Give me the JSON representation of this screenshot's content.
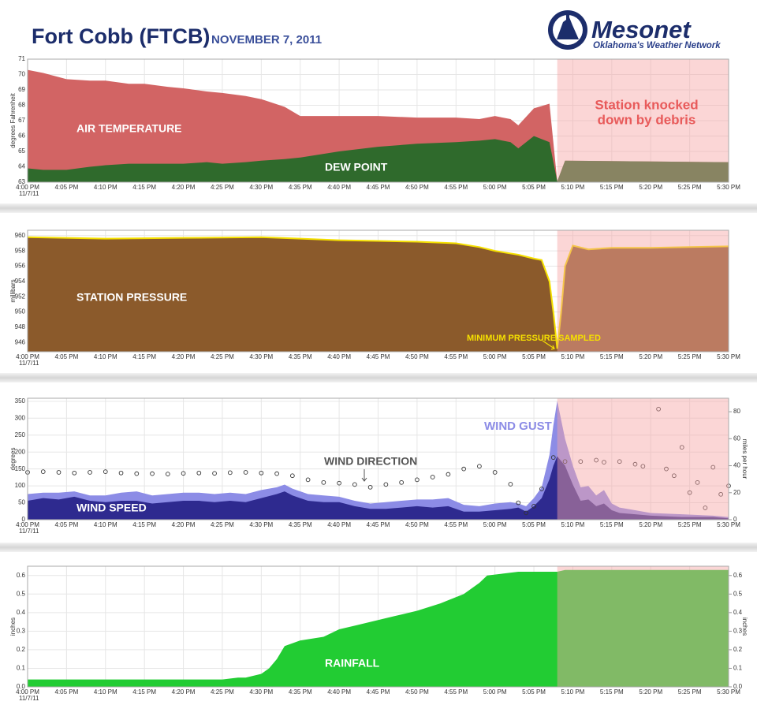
{
  "header": {
    "title": "Fort Cobb (FTCB)",
    "date": "NOVEMBER 7, 2011",
    "logo": "Mesonet",
    "logo_subtitle": "Oklahoma's Weather Network"
  },
  "chart_data": [
    {
      "type": "area",
      "ylabel": "degrees Fahrenheit",
      "x_date": "11/7/11",
      "xlim": [
        0,
        90
      ],
      "xticks": [
        {
          "value": 0,
          "label": "4:00 PM"
        },
        {
          "value": 5,
          "label": "4:05 PM"
        },
        {
          "value": 10,
          "label": "4:10 PM"
        },
        {
          "value": 15,
          "label": "4:15 PM"
        },
        {
          "value": 20,
          "label": "4:20 PM"
        },
        {
          "value": 25,
          "label": "4:25 PM"
        },
        {
          "value": 30,
          "label": "4:30 PM"
        },
        {
          "value": 35,
          "label": "4:35 PM"
        },
        {
          "value": 40,
          "label": "4:40 PM"
        },
        {
          "value": 45,
          "label": "4:45 PM"
        },
        {
          "value": 50,
          "label": "4:50 PM"
        },
        {
          "value": 55,
          "label": "4:55 PM"
        },
        {
          "value": 60,
          "label": "5:00 PM"
        },
        {
          "value": 65,
          "label": "5:05 PM"
        },
        {
          "value": 70,
          "label": "5:10 PM"
        },
        {
          "value": 75,
          "label": "5:15 PM"
        },
        {
          "value": 80,
          "label": "5:20 PM"
        },
        {
          "value": 85,
          "label": "5:25 PM"
        },
        {
          "value": 90,
          "label": "5:30 PM"
        }
      ],
      "ylim": [
        63,
        71
      ],
      "yticks": [
        63,
        64,
        65,
        66,
        67,
        68,
        69,
        70,
        71
      ],
      "grid": true,
      "shade": {
        "x": [
          68,
          90
        ],
        "color": "#f7a3a3"
      },
      "annotations": [
        "Station knocked",
        "down by debris"
      ],
      "series": [
        {
          "name": "AIR TEMPERATURE",
          "type": "area",
          "color": "#d26464",
          "x": [
            0,
            2,
            5,
            8,
            10,
            13,
            15,
            18,
            20,
            23,
            25,
            28,
            30,
            33,
            35,
            40,
            45,
            50,
            55,
            58,
            60,
            62,
            63,
            65,
            67,
            68,
            69,
            90
          ],
          "values": [
            70.3,
            70.1,
            69.7,
            69.6,
            69.6,
            69.4,
            69.4,
            69.2,
            69.1,
            68.9,
            68.8,
            68.6,
            68.4,
            67.9,
            67.3,
            67.3,
            67.3,
            67.2,
            67.2,
            67.1,
            67.3,
            67.1,
            66.7,
            67.8,
            68.1,
            63.05,
            64.4,
            64.3
          ]
        },
        {
          "name": "DEW POINT",
          "type": "area",
          "color": "#2f6a2c",
          "x": [
            0,
            2,
            5,
            8,
            10,
            13,
            15,
            18,
            20,
            23,
            25,
            28,
            30,
            33,
            35,
            40,
            45,
            50,
            55,
            58,
            60,
            62,
            63,
            65,
            67,
            68,
            69,
            90
          ],
          "values": [
            63.9,
            63.8,
            63.8,
            64.0,
            64.1,
            64.2,
            64.2,
            64.2,
            64.2,
            64.3,
            64.2,
            64.3,
            64.4,
            64.5,
            64.6,
            65.0,
            65.3,
            65.5,
            65.6,
            65.7,
            65.8,
            65.6,
            65.2,
            66.0,
            65.6,
            63.05,
            64.4,
            64.3
          ]
        }
      ]
    },
    {
      "type": "area",
      "ylabel": "millibars",
      "x_date": "11/7/11",
      "xlim": [
        0,
        90
      ],
      "xticks": [
        {
          "value": 0,
          "label": "4:00 PM"
        },
        {
          "value": 5,
          "label": "4:05 PM"
        },
        {
          "value": 10,
          "label": "4:10 PM"
        },
        {
          "value": 15,
          "label": "4:15 PM"
        },
        {
          "value": 20,
          "label": "4:20 PM"
        },
        {
          "value": 25,
          "label": "4:25 PM"
        },
        {
          "value": 30,
          "label": "4:30 PM"
        },
        {
          "value": 35,
          "label": "4:35 PM"
        },
        {
          "value": 40,
          "label": "4:40 PM"
        },
        {
          "value": 45,
          "label": "4:45 PM"
        },
        {
          "value": 50,
          "label": "4:50 PM"
        },
        {
          "value": 55,
          "label": "4:55 PM"
        },
        {
          "value": 60,
          "label": "5:00 PM"
        },
        {
          "value": 65,
          "label": "5:05 PM"
        },
        {
          "value": 70,
          "label": "5:10 PM"
        },
        {
          "value": 75,
          "label": "5:15 PM"
        },
        {
          "value": 80,
          "label": "5:20 PM"
        },
        {
          "value": 85,
          "label": "5:25 PM"
        },
        {
          "value": 90,
          "label": "5:30 PM"
        }
      ],
      "ylim": [
        944.8,
        960.7
      ],
      "yticks": [
        946,
        948,
        950,
        952,
        954,
        956,
        958,
        960
      ],
      "grid": true,
      "shade": {
        "x": [
          68,
          90
        ],
        "color": "#f7a3a3"
      },
      "annotations": [
        "MINIMUM PRESSURE SAMPLED"
      ],
      "series": [
        {
          "name": "STATION PRESSURE",
          "type": "area",
          "color": "#8b5a2b",
          "line_color": "#f5e000",
          "x": [
            0,
            10,
            20,
            30,
            35,
            40,
            45,
            50,
            55,
            58,
            60,
            63,
            65,
            66,
            67,
            67.5,
            68,
            68.5,
            69,
            70,
            72,
            75,
            80,
            85,
            90
          ],
          "values": [
            959.8,
            959.6,
            959.7,
            959.8,
            959.6,
            959.4,
            959.3,
            959.2,
            959.0,
            958.5,
            958.0,
            957.5,
            957.0,
            956.8,
            954.0,
            950.0,
            945.2,
            950.0,
            956.0,
            958.7,
            958.2,
            958.4,
            958.4,
            958.5,
            958.6
          ]
        }
      ]
    },
    {
      "type": "area",
      "ylabel": "degrees",
      "y2label": "miles per hour",
      "x_date": "11/7/11",
      "xlim": [
        0,
        90
      ],
      "xticks": [
        {
          "value": 0,
          "label": "4:00 PM"
        },
        {
          "value": 5,
          "label": "4:05 PM"
        },
        {
          "value": 10,
          "label": "4:10 PM"
        },
        {
          "value": 15,
          "label": "4:15 PM"
        },
        {
          "value": 20,
          "label": "4:20 PM"
        },
        {
          "value": 25,
          "label": "4:25 PM"
        },
        {
          "value": 30,
          "label": "4:30 PM"
        },
        {
          "value": 35,
          "label": "4:35 PM"
        },
        {
          "value": 40,
          "label": "4:40 PM"
        },
        {
          "value": 45,
          "label": "4:45 PM"
        },
        {
          "value": 50,
          "label": "4:50 PM"
        },
        {
          "value": 55,
          "label": "4:55 PM"
        },
        {
          "value": 60,
          "label": "5:00 PM"
        },
        {
          "value": 65,
          "label": "5:05 PM"
        },
        {
          "value": 70,
          "label": "5:10 PM"
        },
        {
          "value": 75,
          "label": "5:15 PM"
        },
        {
          "value": 80,
          "label": "5:20 PM"
        },
        {
          "value": 85,
          "label": "5:25 PM"
        },
        {
          "value": 90,
          "label": "5:30 PM"
        }
      ],
      "ylim": [
        0,
        359
      ],
      "yticks": [
        0,
        50,
        100,
        150,
        200,
        250,
        300,
        350
      ],
      "y2lim": [
        0,
        90
      ],
      "y2ticks": [
        0,
        20,
        40,
        60,
        80
      ],
      "grid": true,
      "shade": {
        "x": [
          68,
          90
        ],
        "color": "#f7a3a3"
      },
      "series": [
        {
          "name": "WIND GUST",
          "type": "area",
          "axis": "y2",
          "color": "#8c8ce6",
          "x": [
            0,
            2,
            4,
            6,
            8,
            10,
            12,
            14,
            16,
            18,
            20,
            22,
            24,
            26,
            28,
            30,
            32,
            33,
            34,
            36,
            38,
            40,
            42,
            44,
            46,
            48,
            50,
            52,
            54,
            56,
            58,
            60,
            62,
            63,
            64,
            65,
            66,
            67,
            67.5,
            68,
            69,
            70,
            71,
            72,
            73,
            74,
            75,
            76,
            78,
            80,
            84,
            88,
            90
          ],
          "values": [
            19,
            20,
            20,
            21,
            18,
            18,
            20,
            21,
            18,
            19,
            20,
            20,
            19,
            20,
            19,
            22,
            24,
            26,
            23,
            19,
            18,
            17,
            14,
            12,
            13,
            14,
            15,
            15,
            16,
            11,
            10,
            12,
            13,
            12,
            10,
            16,
            24,
            48,
            70,
            88,
            60,
            40,
            24,
            25,
            18,
            22,
            12,
            9,
            7,
            5,
            4,
            3,
            2
          ]
        },
        {
          "name": "WIND SPEED",
          "type": "area",
          "axis": "y2",
          "color": "#2e2a8f",
          "x": [
            0,
            2,
            4,
            6,
            8,
            10,
            12,
            14,
            16,
            18,
            20,
            22,
            24,
            26,
            28,
            30,
            32,
            33,
            34,
            36,
            38,
            40,
            42,
            44,
            46,
            48,
            50,
            52,
            54,
            56,
            58,
            60,
            62,
            63,
            64,
            65,
            66,
            67,
            67.5,
            68,
            69,
            70,
            71,
            72,
            73,
            74,
            75,
            76,
            78,
            80,
            84,
            88,
            90
          ],
          "values": [
            14,
            16,
            15,
            17,
            14,
            13,
            14,
            14,
            12,
            13,
            14,
            14,
            13,
            14,
            13,
            16,
            19,
            21,
            18,
            14,
            13,
            13,
            10,
            8,
            8,
            9,
            10,
            9,
            10,
            6,
            6,
            7,
            8,
            9,
            6,
            10,
            16,
            30,
            40,
            47,
            40,
            26,
            14,
            15,
            10,
            12,
            7,
            5,
            4,
            3,
            2,
            2,
            1
          ]
        },
        {
          "name": "WIND DIRECTION",
          "type": "scatter",
          "color": "#333333",
          "x": [
            0,
            2,
            4,
            6,
            8,
            10,
            12,
            14,
            16,
            18,
            20,
            22,
            24,
            26,
            28,
            30,
            32,
            34,
            36,
            38,
            40,
            42,
            44,
            46,
            48,
            50,
            52,
            54,
            56,
            58,
            60,
            62,
            63,
            64,
            65,
            66,
            67.5,
            69,
            71,
            73,
            74,
            76,
            78,
            79,
            81,
            82,
            83,
            84,
            85,
            86,
            87,
            88,
            89,
            90
          ],
          "values": [
            140,
            142,
            140,
            138,
            140,
            142,
            138,
            136,
            136,
            135,
            137,
            138,
            137,
            139,
            140,
            138,
            136,
            130,
            118,
            110,
            108,
            104,
            96,
            104,
            110,
            118,
            126,
            134,
            150,
            158,
            140,
            105,
            50,
            20,
            40,
            91,
            184,
            172,
            172,
            176,
            170,
            172,
            164,
            158,
            327,
            150,
            130,
            214,
            80,
            110,
            35,
            155,
            75,
            100
          ]
        }
      ]
    },
    {
      "type": "area",
      "ylabel": "inches",
      "y2label": "inches",
      "x_date": "11/7/11",
      "xlim": [
        0,
        90
      ],
      "xticks": [
        {
          "value": 0,
          "label": "4:00 PM"
        },
        {
          "value": 5,
          "label": "4:05 PM"
        },
        {
          "value": 10,
          "label": "4:10 PM"
        },
        {
          "value": 15,
          "label": "4:15 PM"
        },
        {
          "value": 20,
          "label": "4:20 PM"
        },
        {
          "value": 25,
          "label": "4:25 PM"
        },
        {
          "value": 30,
          "label": "4:30 PM"
        },
        {
          "value": 35,
          "label": "4:35 PM"
        },
        {
          "value": 40,
          "label": "4:40 PM"
        },
        {
          "value": 45,
          "label": "4:45 PM"
        },
        {
          "value": 50,
          "label": "4:50 PM"
        },
        {
          "value": 55,
          "label": "4:55 PM"
        },
        {
          "value": 60,
          "label": "5:00 PM"
        },
        {
          "value": 65,
          "label": "5:05 PM"
        },
        {
          "value": 70,
          "label": "5:10 PM"
        },
        {
          "value": 75,
          "label": "5:15 PM"
        },
        {
          "value": 80,
          "label": "5:20 PM"
        },
        {
          "value": 85,
          "label": "5:25 PM"
        },
        {
          "value": 90,
          "label": "5:30 PM"
        }
      ],
      "ylim": [
        0,
        0.65
      ],
      "yticks": [
        {
          "value": 0,
          "label": "0.0"
        },
        0.1,
        0.2,
        0.3,
        0.4,
        0.5,
        0.6
      ],
      "y2lim": [
        0,
        0.65
      ],
      "y2ticks": [
        {
          "value": 0,
          "label": "0.0"
        },
        0.1,
        0.2,
        0.3,
        0.4,
        0.5,
        0.6
      ],
      "grid": true,
      "shade": {
        "x": [
          68,
          90
        ],
        "color": "#f7a3a3"
      },
      "series": [
        {
          "name": "RAINFALL",
          "type": "area",
          "color": "#22cc33",
          "x": [
            0,
            25,
            27,
            28,
            30,
            31,
            32,
            33,
            35,
            38,
            40,
            42,
            44,
            47,
            50,
            53,
            56,
            58,
            59,
            61,
            63,
            68,
            69,
            90
          ],
          "values": [
            0.04,
            0.04,
            0.05,
            0.05,
            0.07,
            0.1,
            0.15,
            0.22,
            0.25,
            0.27,
            0.31,
            0.33,
            0.35,
            0.38,
            0.41,
            0.45,
            0.5,
            0.56,
            0.6,
            0.61,
            0.62,
            0.62,
            0.63,
            0.63
          ]
        }
      ]
    }
  ]
}
